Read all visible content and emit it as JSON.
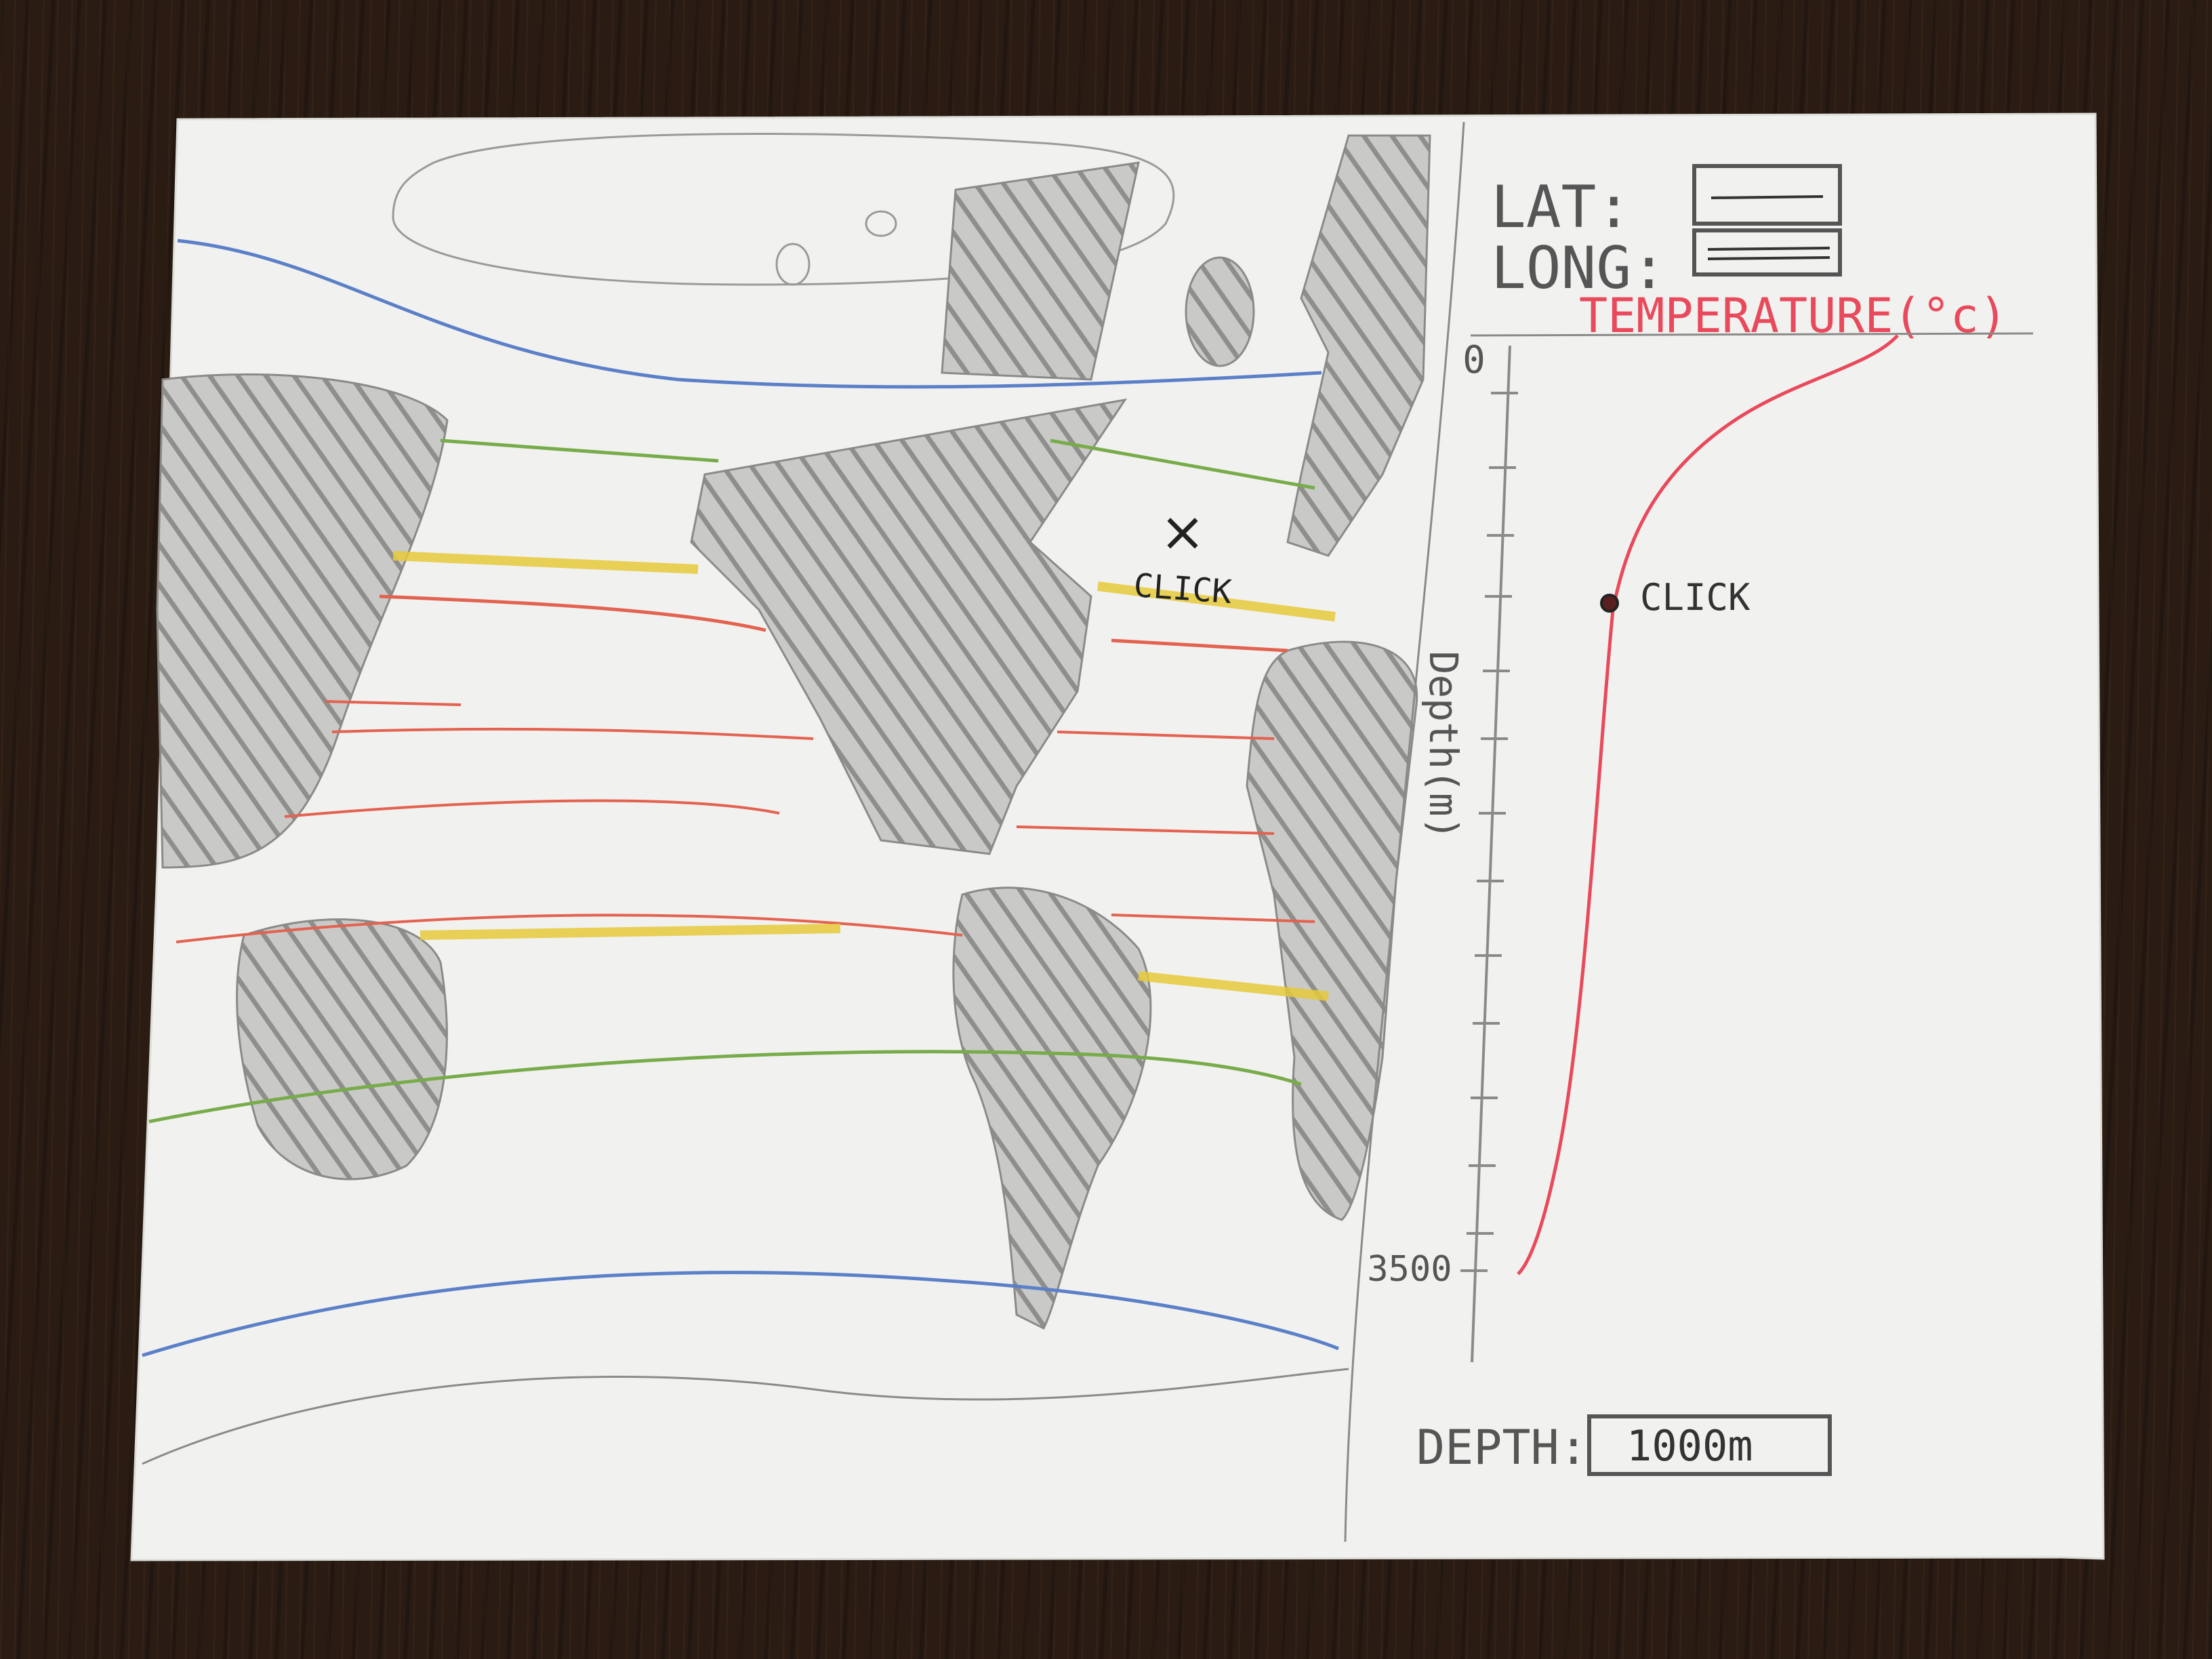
{
  "form": {
    "lat_label": "LAT:",
    "long_label": "LONG:",
    "depth_label": "DEPTH:",
    "depth_value": "1000m"
  },
  "map": {
    "click_marker": "×",
    "click_label": "CLICK"
  },
  "profile": {
    "title": "TEMPERATURE(°c)",
    "y_axis_label": "Depth(m)",
    "y_tick_top": "0",
    "y_tick_bottom": "3500",
    "click_label": "CLICK"
  },
  "colors": {
    "paper": "#f1f1ef",
    "pencil": "#8a8a8a",
    "blue": "#5b80c8",
    "green": "#78ac4a",
    "yellow": "#e6c93a",
    "red": "#e36250",
    "pink_red": "#e84a5c",
    "ink": "#222222"
  }
}
